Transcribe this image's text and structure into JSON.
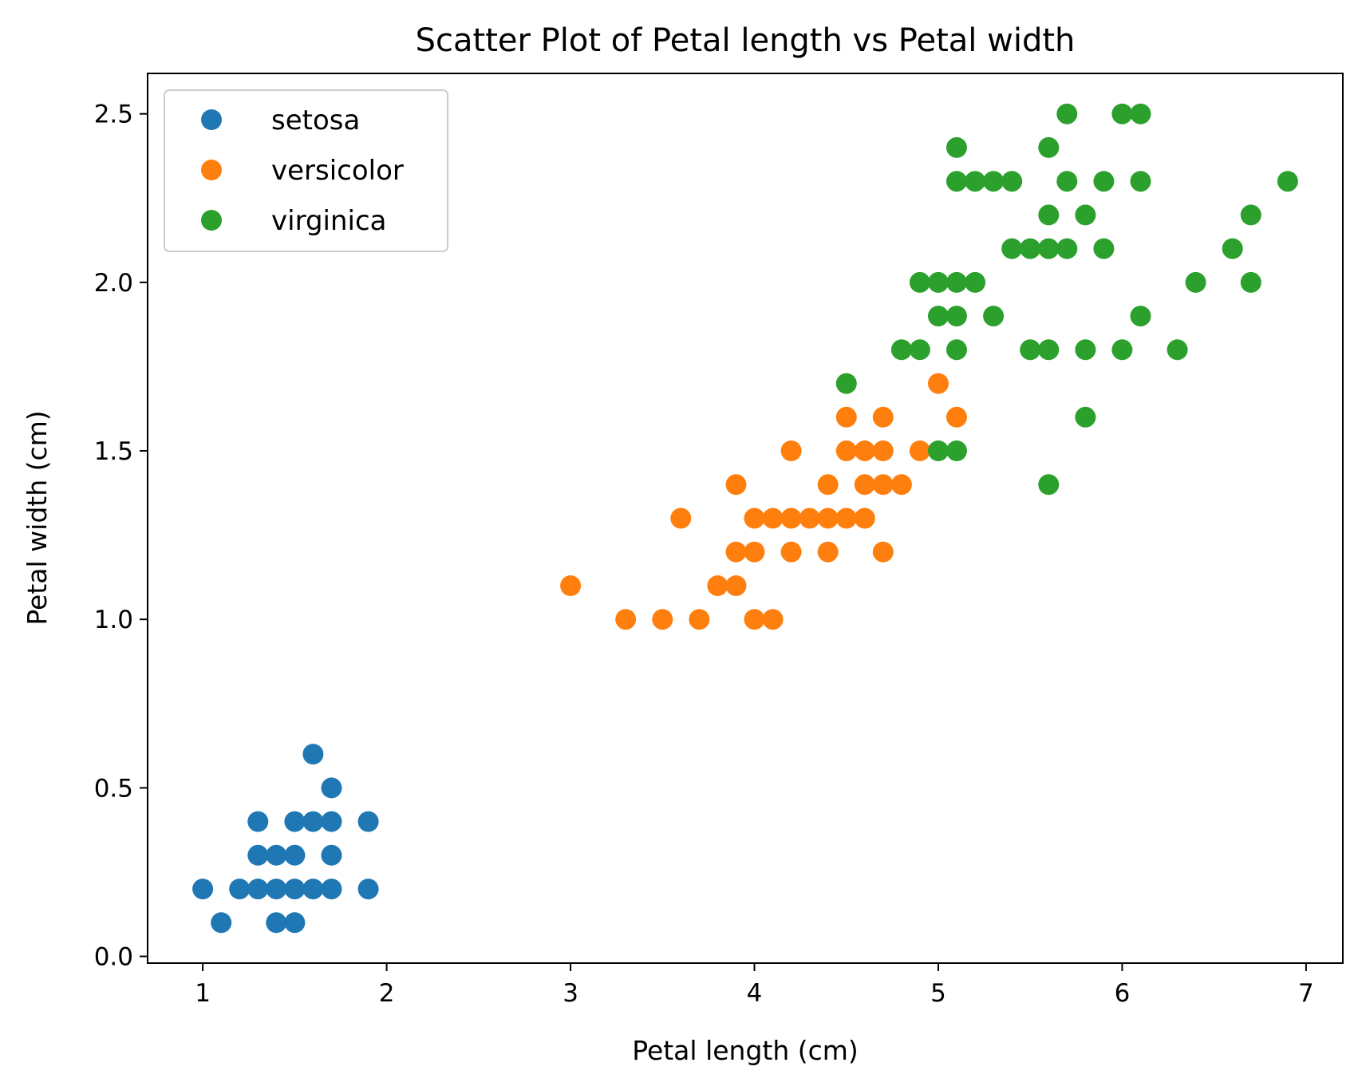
{
  "chart_data": {
    "type": "scatter",
    "title": "Scatter Plot of Petal length vs Petal width",
    "xlabel": "Petal length (cm)",
    "ylabel": "Petal width (cm)",
    "xlim": [
      0.7,
      7.2
    ],
    "ylim": [
      -0.02,
      2.62
    ],
    "xticks": [
      1,
      2,
      3,
      4,
      5,
      6,
      7
    ],
    "xtick_labels": [
      "1",
      "2",
      "3",
      "4",
      "5",
      "6",
      "7"
    ],
    "yticks": [
      0.0,
      0.5,
      1.0,
      1.5,
      2.0,
      2.5
    ],
    "ytick_labels": [
      "0.0",
      "0.5",
      "1.0",
      "1.5",
      "2.0",
      "2.5"
    ],
    "grid": false,
    "legend_position": "top-left",
    "series": [
      {
        "name": "setosa",
        "color": "#1f77b4",
        "points": [
          [
            1.0,
            0.2
          ],
          [
            1.1,
            0.1
          ],
          [
            1.2,
            0.2
          ],
          [
            1.3,
            0.2
          ],
          [
            1.3,
            0.3
          ],
          [
            1.3,
            0.4
          ],
          [
            1.4,
            0.1
          ],
          [
            1.4,
            0.2
          ],
          [
            1.4,
            0.3
          ],
          [
            1.5,
            0.1
          ],
          [
            1.5,
            0.2
          ],
          [
            1.5,
            0.3
          ],
          [
            1.5,
            0.4
          ],
          [
            1.6,
            0.2
          ],
          [
            1.6,
            0.4
          ],
          [
            1.6,
            0.6
          ],
          [
            1.7,
            0.2
          ],
          [
            1.7,
            0.3
          ],
          [
            1.7,
            0.4
          ],
          [
            1.7,
            0.5
          ],
          [
            1.9,
            0.2
          ],
          [
            1.9,
            0.4
          ]
        ]
      },
      {
        "name": "versicolor",
        "color": "#ff7f0e",
        "points": [
          [
            3.0,
            1.1
          ],
          [
            3.3,
            1.0
          ],
          [
            3.5,
            1.0
          ],
          [
            3.6,
            1.3
          ],
          [
            3.7,
            1.0
          ],
          [
            3.8,
            1.1
          ],
          [
            3.9,
            1.1
          ],
          [
            3.9,
            1.2
          ],
          [
            3.9,
            1.4
          ],
          [
            4.0,
            1.0
          ],
          [
            4.0,
            1.2
          ],
          [
            4.0,
            1.3
          ],
          [
            4.1,
            1.0
          ],
          [
            4.1,
            1.3
          ],
          [
            4.2,
            1.2
          ],
          [
            4.2,
            1.3
          ],
          [
            4.2,
            1.5
          ],
          [
            4.3,
            1.3
          ],
          [
            4.4,
            1.2
          ],
          [
            4.4,
            1.3
          ],
          [
            4.4,
            1.4
          ],
          [
            4.5,
            1.3
          ],
          [
            4.5,
            1.5
          ],
          [
            4.5,
            1.6
          ],
          [
            4.6,
            1.3
          ],
          [
            4.6,
            1.4
          ],
          [
            4.6,
            1.5
          ],
          [
            4.7,
            1.2
          ],
          [
            4.7,
            1.4
          ],
          [
            4.7,
            1.5
          ],
          [
            4.7,
            1.6
          ],
          [
            4.8,
            1.4
          ],
          [
            4.9,
            1.5
          ],
          [
            5.0,
            1.7
          ],
          [
            5.1,
            1.6
          ]
        ]
      },
      {
        "name": "virginica",
        "color": "#2ca02c",
        "points": [
          [
            4.5,
            1.7
          ],
          [
            4.8,
            1.8
          ],
          [
            4.9,
            1.8
          ],
          [
            4.9,
            2.0
          ],
          [
            5.0,
            1.5
          ],
          [
            5.0,
            1.9
          ],
          [
            5.0,
            2.0
          ],
          [
            5.1,
            1.5
          ],
          [
            5.1,
            1.8
          ],
          [
            5.1,
            1.9
          ],
          [
            5.1,
            2.0
          ],
          [
            5.1,
            2.3
          ],
          [
            5.1,
            2.4
          ],
          [
            5.2,
            2.0
          ],
          [
            5.2,
            2.3
          ],
          [
            5.3,
            1.9
          ],
          [
            5.3,
            2.3
          ],
          [
            5.4,
            2.1
          ],
          [
            5.4,
            2.3
          ],
          [
            5.5,
            1.8
          ],
          [
            5.5,
            2.1
          ],
          [
            5.6,
            1.4
          ],
          [
            5.6,
            1.8
          ],
          [
            5.6,
            2.1
          ],
          [
            5.6,
            2.2
          ],
          [
            5.6,
            2.4
          ],
          [
            5.7,
            2.1
          ],
          [
            5.7,
            2.3
          ],
          [
            5.7,
            2.5
          ],
          [
            5.8,
            1.6
          ],
          [
            5.8,
            1.8
          ],
          [
            5.8,
            2.2
          ],
          [
            5.9,
            2.1
          ],
          [
            5.9,
            2.3
          ],
          [
            6.0,
            1.8
          ],
          [
            6.0,
            2.5
          ],
          [
            6.1,
            1.9
          ],
          [
            6.1,
            2.3
          ],
          [
            6.1,
            2.5
          ],
          [
            6.3,
            1.8
          ],
          [
            6.4,
            2.0
          ],
          [
            6.6,
            2.1
          ],
          [
            6.7,
            2.0
          ],
          [
            6.7,
            2.2
          ],
          [
            6.9,
            2.3
          ]
        ]
      }
    ]
  }
}
